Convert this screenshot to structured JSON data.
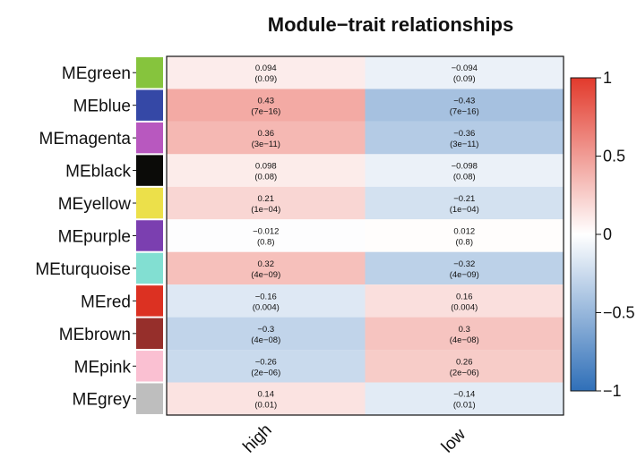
{
  "chart_data": {
    "type": "heatmap",
    "title": "Module−trait relationships",
    "rows": [
      {
        "name": "MEgreen",
        "color": "#86c43d",
        "values": [
          0.094,
          -0.094
        ],
        "pvalues": [
          "0.09",
          "0.09"
        ]
      },
      {
        "name": "MEblue",
        "color": "#3548a6",
        "values": [
          0.43,
          -0.43
        ],
        "pvalues": [
          "7e−16",
          "7e−16"
        ]
      },
      {
        "name": "MEmagenta",
        "color": "#b858bf",
        "values": [
          0.36,
          -0.36
        ],
        "pvalues": [
          "3e−11",
          "3e−11"
        ]
      },
      {
        "name": "MEblack",
        "color": "#0b0b08",
        "values": [
          0.098,
          -0.098
        ],
        "pvalues": [
          "0.08",
          "0.08"
        ]
      },
      {
        "name": "MEyellow",
        "color": "#ece04a",
        "values": [
          0.21,
          -0.21
        ],
        "pvalues": [
          "1e−04",
          "1e−04"
        ]
      },
      {
        "name": "MEpurple",
        "color": "#7b3fb0",
        "values": [
          -0.012,
          0.012
        ],
        "pvalues": [
          "0.8",
          "0.8"
        ]
      },
      {
        "name": "MEturquoise",
        "color": "#82dfd2",
        "values": [
          0.32,
          -0.32
        ],
        "pvalues": [
          "4e−09",
          "4e−09"
        ]
      },
      {
        "name": "MEred",
        "color": "#dc3122",
        "values": [
          -0.16,
          0.16
        ],
        "pvalues": [
          "0.004",
          "0.004"
        ]
      },
      {
        "name": "MEbrown",
        "color": "#962f2b",
        "values": [
          -0.3,
          0.3
        ],
        "pvalues": [
          "4e−08",
          "4e−08"
        ]
      },
      {
        "name": "MEpink",
        "color": "#fac0d2",
        "values": [
          -0.26,
          0.26
        ],
        "pvalues": [
          "2e−06",
          "2e−06"
        ]
      },
      {
        "name": "MEgrey",
        "color": "#bebebe",
        "values": [
          0.14,
          -0.14
        ],
        "pvalues": [
          "0.01",
          "0.01"
        ]
      }
    ],
    "columns": [
      "high",
      "low"
    ],
    "value_labels": [
      [
        "0.094",
        "−0.094"
      ],
      [
        "0.43",
        "−0.43"
      ],
      [
        "0.36",
        "−0.36"
      ],
      [
        "0.098",
        "−0.098"
      ],
      [
        "0.21",
        "−0.21"
      ],
      [
        "−0.012",
        "0.012"
      ],
      [
        "0.32",
        "−0.32"
      ],
      [
        "−0.16",
        "0.16"
      ],
      [
        "−0.3",
        "0.3"
      ],
      [
        "−0.26",
        "0.26"
      ],
      [
        "0.14",
        "−0.14"
      ]
    ],
    "colorbar": {
      "range": [
        -1,
        1
      ],
      "ticks": [
        1,
        0.5,
        0,
        -0.5,
        -1
      ],
      "tick_labels": [
        "1",
        "0.5",
        "0",
        "−0.5",
        "−1"
      ],
      "low_color": "#2f6fb8",
      "mid_color": "#ffffff",
      "high_color": "#e23a2c"
    },
    "legend": "right",
    "grid": false
  }
}
